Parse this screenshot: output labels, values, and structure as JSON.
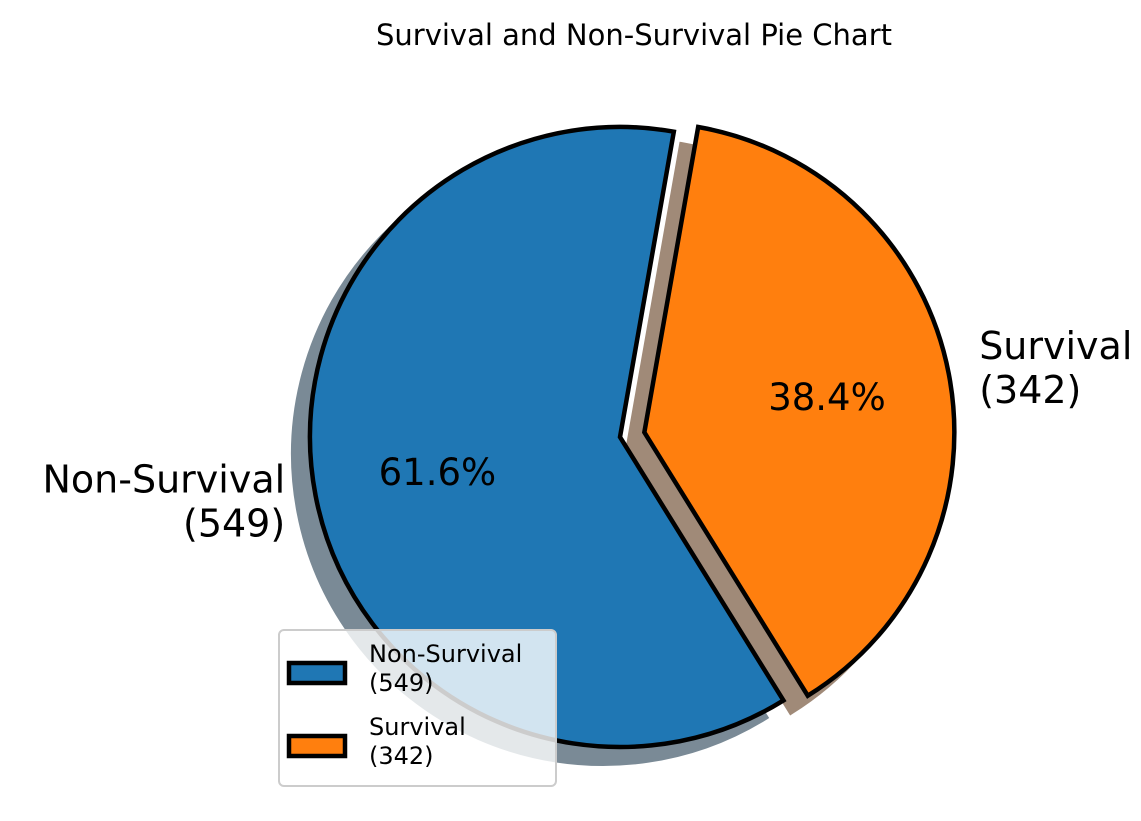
{
  "chart_data": {
    "type": "pie",
    "title": "Survival and Non-Survival Pie Chart",
    "slices": [
      {
        "label": "Non-Survival\n(549)",
        "category": "Non-Survival",
        "count": 549,
        "percent_label": "61.6%",
        "color": "#1f77b4",
        "shadow_color": "#7a8a96",
        "exploded": false
      },
      {
        "label": "Survival\n(342)",
        "category": "Survival",
        "count": 342,
        "percent_label": "38.4%",
        "color": "#ff7f0e",
        "shadow_color": "#a08a78",
        "exploded": true
      }
    ],
    "start_angle_deg": 80,
    "shadow": true,
    "edge_color": "#000000",
    "legend": {
      "placement": "lower-center",
      "entries": [
        "Non-Survival\n(549)",
        "Survival\n(342)"
      ]
    }
  }
}
